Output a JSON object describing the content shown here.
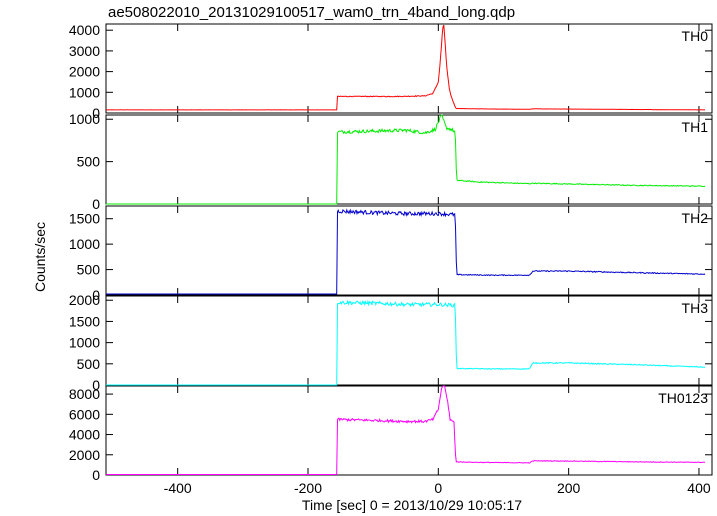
{
  "chart_data": {
    "type": "line",
    "title": "ae508022010_20131029100517_wam0_trn_4band_long.qdp",
    "xlabel": "Time [sec] 0 = 2013/10/29 10:05:17",
    "ylabel": "Counts/sec",
    "xlim": [
      -510,
      420
    ],
    "xticks": [
      -400,
      -200,
      0,
      200,
      400
    ],
    "legend": "none",
    "grid": false,
    "panels": [
      {
        "label": "TH0",
        "color": "#ff0000",
        "ylim": [
          0,
          4300
        ],
        "yticks": [
          0,
          1000,
          2000,
          3000,
          4000
        ],
        "points": [
          [
            -510,
            150
          ],
          [
            -155,
            150
          ],
          [
            -155,
            800
          ],
          [
            -60,
            800
          ],
          [
            -20,
            830
          ],
          [
            -8,
            950
          ],
          [
            0,
            1500
          ],
          [
            3,
            2500
          ],
          [
            6,
            3800
          ],
          [
            8,
            4300
          ],
          [
            10,
            3600
          ],
          [
            13,
            2200
          ],
          [
            17,
            1100
          ],
          [
            22,
            600
          ],
          [
            27,
            220
          ],
          [
            60,
            200
          ],
          [
            140,
            180
          ],
          [
            145,
            200
          ],
          [
            200,
            190
          ],
          [
            300,
            170
          ],
          [
            410,
            150
          ]
        ]
      },
      {
        "label": "TH1",
        "color": "#00ee00",
        "ylim": [
          0,
          1050
        ],
        "yticks": [
          0,
          500,
          1000
        ],
        "points": [
          [
            -510,
            0
          ],
          [
            -155,
            0
          ],
          [
            -155,
            850
          ],
          [
            -100,
            860
          ],
          [
            -50,
            870
          ],
          [
            -20,
            840
          ],
          [
            -5,
            880
          ],
          [
            5,
            1050
          ],
          [
            12,
            900
          ],
          [
            20,
            880
          ],
          [
            26,
            850
          ],
          [
            28,
            280
          ],
          [
            60,
            260
          ],
          [
            140,
            240
          ],
          [
            145,
            245
          ],
          [
            300,
            220
          ],
          [
            410,
            210
          ]
        ]
      },
      {
        "label": "TH2",
        "color": "#0000cc",
        "ylim": [
          0,
          1750
        ],
        "yticks": [
          0,
          500,
          1000,
          1500
        ],
        "points": [
          [
            -510,
            20
          ],
          [
            -155,
            20
          ],
          [
            -155,
            1650
          ],
          [
            -100,
            1620
          ],
          [
            -50,
            1600
          ],
          [
            0,
            1600
          ],
          [
            26,
            1580
          ],
          [
            28,
            400
          ],
          [
            80,
            390
          ],
          [
            140,
            390
          ],
          [
            145,
            470
          ],
          [
            200,
            470
          ],
          [
            300,
            440
          ],
          [
            410,
            410
          ]
        ]
      },
      {
        "label": "TH3",
        "color": "#00ffff",
        "ylim": [
          0,
          2100
        ],
        "yticks": [
          0,
          500,
          1000,
          1500,
          2000
        ],
        "points": [
          [
            -510,
            0
          ],
          [
            -155,
            0
          ],
          [
            -155,
            1950
          ],
          [
            -100,
            1930
          ],
          [
            -50,
            1900
          ],
          [
            0,
            1900
          ],
          [
            26,
            1880
          ],
          [
            28,
            390
          ],
          [
            80,
            380
          ],
          [
            140,
            380
          ],
          [
            145,
            520
          ],
          [
            200,
            520
          ],
          [
            300,
            480
          ],
          [
            410,
            420
          ]
        ]
      },
      {
        "label": "TH0123",
        "color": "#ff00ff",
        "ylim": [
          0,
          8800
        ],
        "yticks": [
          0,
          2000,
          4000,
          6000,
          8000
        ],
        "points": [
          [
            -510,
            50
          ],
          [
            -155,
            50
          ],
          [
            -155,
            5500
          ],
          [
            -100,
            5400
          ],
          [
            -50,
            5300
          ],
          [
            -20,
            5300
          ],
          [
            -8,
            5500
          ],
          [
            0,
            6500
          ],
          [
            4,
            8200
          ],
          [
            8,
            9300
          ],
          [
            11,
            8300
          ],
          [
            15,
            7000
          ],
          [
            18,
            5500
          ],
          [
            24,
            5200
          ],
          [
            27,
            1300
          ],
          [
            60,
            1250
          ],
          [
            140,
            1200
          ],
          [
            145,
            1400
          ],
          [
            200,
            1380
          ],
          [
            300,
            1300
          ],
          [
            410,
            1250
          ]
        ]
      }
    ]
  }
}
